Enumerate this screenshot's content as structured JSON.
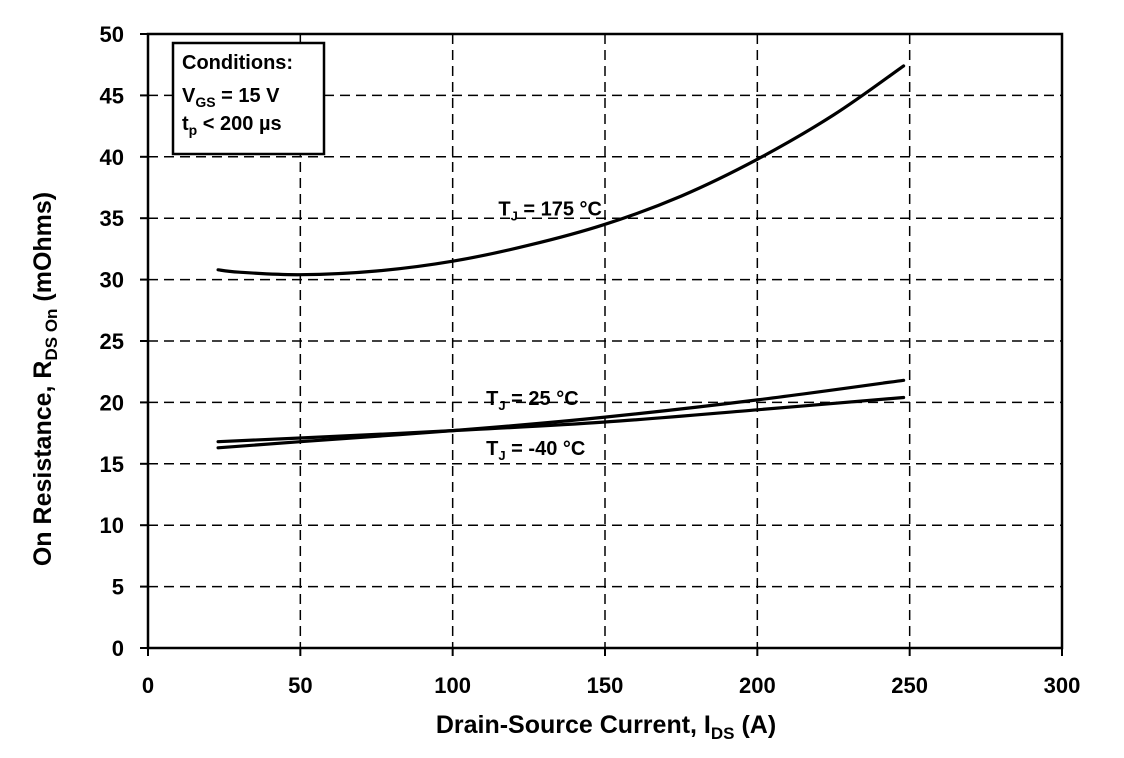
{
  "chart_data": {
    "type": "line",
    "xlabel": "Drain-Source Current, I",
    "xlabel_sub": "DS",
    "xlabel_suffix": " (A)",
    "ylabel": "On Resistance, R",
    "ylabel_sub": "DS On",
    "ylabel_suffix": " (mOhms)",
    "xlim": [
      0,
      300
    ],
    "ylim": [
      0,
      50
    ],
    "xticks": [
      0,
      50,
      100,
      150,
      200,
      250,
      300
    ],
    "yticks": [
      0,
      5,
      10,
      15,
      20,
      25,
      30,
      35,
      40,
      45,
      50
    ],
    "grid": true,
    "legend_box": {
      "title": "Conditions:",
      "line1_main": "V",
      "line1_sub": "GS",
      "line1_rest": " = 15 V",
      "line2_main": "t",
      "line2_sub": "p",
      "line2_rest": " < 200 µs",
      "placement": "top-left"
    },
    "series": [
      {
        "name": "TJ = 175 °C",
        "label_main": "T",
        "label_sub": "J",
        "label_rest": " = 175 °C",
        "x": [
          23,
          30,
          50,
          75,
          100,
          125,
          150,
          175,
          200,
          225,
          248
        ],
        "y": [
          30.8,
          30.6,
          30.4,
          30.7,
          31.5,
          32.8,
          34.5,
          36.8,
          39.8,
          43.4,
          47.4
        ]
      },
      {
        "name": "TJ = 25 °C",
        "label_main": "T",
        "label_sub": "J",
        "label_rest": " = 25 °C",
        "x": [
          23,
          50,
          100,
          150,
          200,
          248
        ],
        "y": [
          16.3,
          16.8,
          17.7,
          18.8,
          20.2,
          21.8
        ]
      },
      {
        "name": "TJ = -40 °C",
        "label_main": "T",
        "label_sub": "J",
        "label_rest": " = -40 °C",
        "x": [
          23,
          50,
          100,
          150,
          200,
          248
        ],
        "y": [
          16.8,
          17.1,
          17.7,
          18.4,
          19.4,
          20.4
        ]
      }
    ],
    "line_labels": [
      {
        "series": 0,
        "x": 115,
        "y": 35.2
      },
      {
        "series": 1,
        "x": 111,
        "y": 19.8
      },
      {
        "series": 2,
        "x": 111,
        "y": 15.7
      }
    ],
    "colors": {
      "line": "#000000",
      "grid": "#000000",
      "background": "#ffffff"
    }
  }
}
